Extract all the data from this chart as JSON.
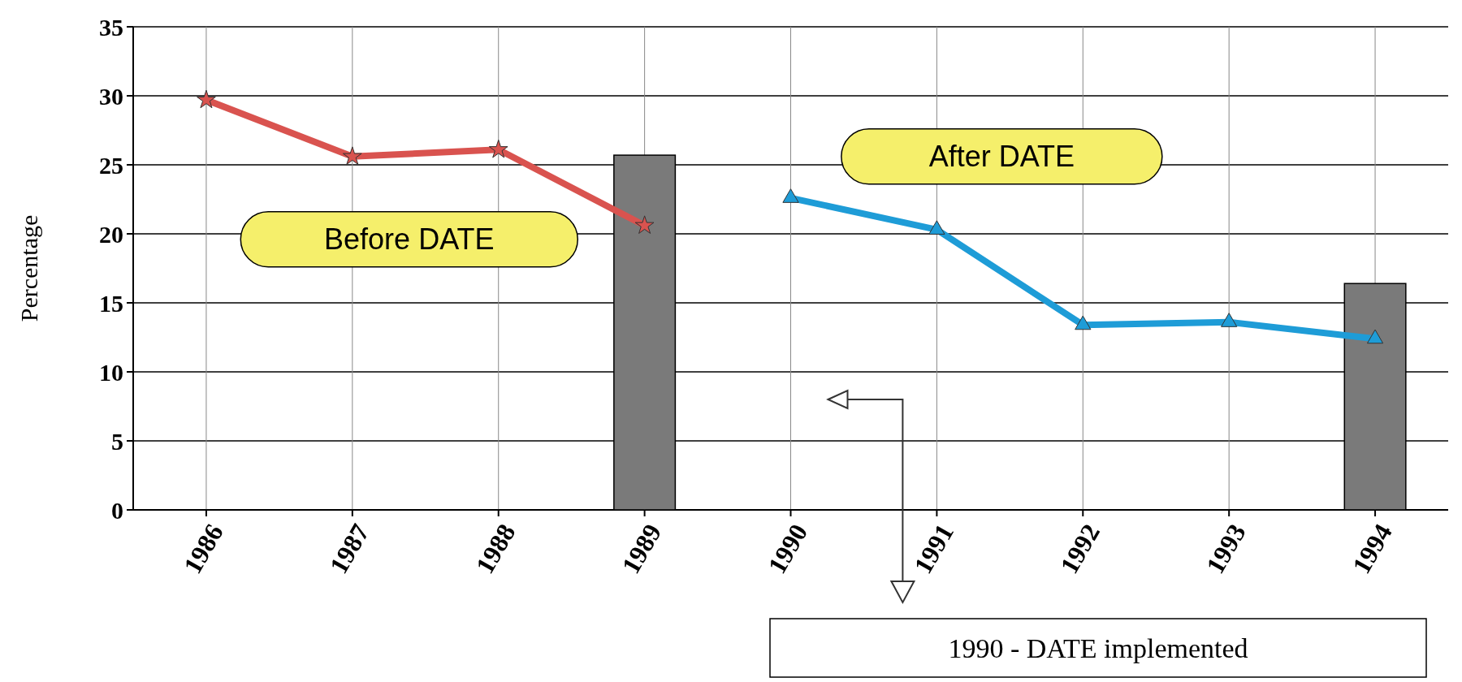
{
  "chart_data": {
    "type": "line",
    "ylabel": "Percentage",
    "categories": [
      "1986",
      "1987",
      "1988",
      "1989",
      "1990",
      "1991",
      "1992",
      "1993",
      "1994"
    ],
    "series": [
      {
        "type": "bar",
        "color": "#7a7a7a",
        "values": [
          null,
          null,
          null,
          25.7,
          null,
          null,
          null,
          null,
          16.4
        ]
      },
      {
        "color": "#d9534f",
        "marker": "star",
        "values": [
          29.7,
          25.6,
          26.1,
          20.6,
          null,
          null,
          null,
          null,
          null
        ]
      },
      {
        "color": "#1e9cd7",
        "marker": "triangle",
        "values": [
          null,
          null,
          null,
          null,
          22.6,
          20.3,
          13.4,
          13.6,
          12.4
        ]
      }
    ],
    "ylim": [
      0,
      35
    ],
    "yticks": [
      0,
      5,
      10,
      15,
      20,
      25,
      30,
      35
    ],
    "grid": true,
    "annotations": [
      "Before DATE",
      "After DATE",
      "1990 - DATE implemented"
    ]
  }
}
